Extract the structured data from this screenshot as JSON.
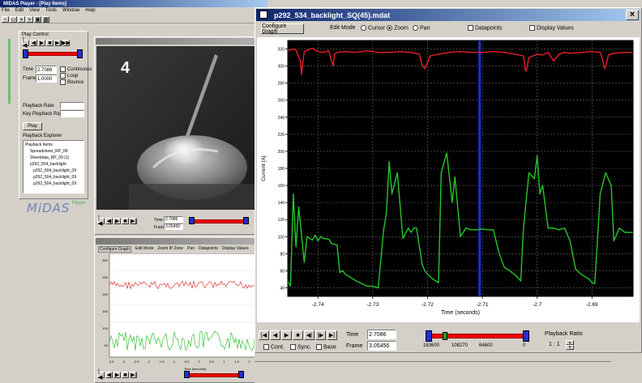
{
  "app": {
    "title": "MIDAS Player - [Play Items]",
    "menu": [
      "File",
      "Edit",
      "View",
      "Tools",
      "Window",
      "Help"
    ],
    "logo_text": "MiDAS",
    "logo_sub": "Player"
  },
  "play_control": {
    "title": "Play Control",
    "time_label": "Time",
    "time_value": "2.7086",
    "frame_label": "Frame",
    "frame_value": "1.0000",
    "cbx_continuous": "Continuous",
    "cbx_loop": "Loop",
    "cbx_bounce": "Bounce",
    "playback_rate_label": "Playback Rate",
    "key_frame_label": "Key Playback Rate",
    "play_button": "Play",
    "explorer_title": "Playback Explorer",
    "tree": [
      "Playback Items",
      "Spreadsheet_RP_09",
      "Sheetdata_RP_09 (1)",
      "p292_504_backlight",
      "p292_504_backlight_09",
      "p292_504_backlight_09",
      "p292_504_backlight_09"
    ]
  },
  "video": {
    "overlay_number": "4",
    "time_label": "Time",
    "time_value": "2.7086",
    "frame_label": "Frame",
    "frame_value": "3.05456"
  },
  "small_chart": {
    "tabs": [
      "Configure Graph",
      "Edit Mode",
      "Zoom IP Zone",
      "Pan",
      "Datapoints",
      "Display Values"
    ],
    "y_ticks": [
      "300",
      "250",
      "200",
      "150",
      "100",
      "50"
    ],
    "x_ticks": [
      "-3.5",
      "-3",
      "-2.5",
      "-2",
      "-1.5",
      "-1",
      "-0.5",
      "0",
      "0.5",
      "1",
      "1.5",
      "2",
      "2.5"
    ],
    "xlabel": "Time (seconds)",
    "colors": {
      "top": "#e01818",
      "bottom": "#18b818"
    }
  },
  "chart_window": {
    "title": "p292_534_backlight_SQ(45).mdat",
    "close_icon": "×",
    "configure_button": "Configure Graph",
    "edit_mode_label": "Edit Mode",
    "mode_cursor": "Cursor",
    "mode_zoom": "Zoom",
    "mode_pan": "Pan",
    "datapoints_label": "Datapoints",
    "display_values_label": "Display Values",
    "selected_mode": "Zoom"
  },
  "playback": {
    "time_label": "Time",
    "time_value": "2.7086",
    "frame_label": "Frame",
    "frame_value": "3.05456",
    "cbx_cont": "Cont.",
    "cbx_sync": "Sync.",
    "cbx_base": "Base",
    "scrub_labels": [
      "163600",
      "108270",
      "64600",
      "0"
    ],
    "position": 0.12,
    "ratio_label": "Playback Ratio",
    "ratio_value": "1 : 1"
  },
  "chart_data": {
    "type": "line",
    "ylabel": "Current [A]",
    "xlabel": "Time (seconds)",
    "xlim": [
      -2.7455,
      -2.6825
    ],
    "ylim": [
      30,
      330
    ],
    "x_ticks": [
      -2.74,
      -2.73,
      -2.72,
      -2.71,
      -2.7,
      -2.69
    ],
    "x_tick_labels": [
      "-2.74",
      "-2.73",
      "-2.72",
      "-2.71",
      "-2.7",
      "-2.69"
    ],
    "y_ticks": [
      40,
      60,
      80,
      100,
      120,
      140,
      160,
      180,
      200,
      220,
      240,
      260,
      280,
      300,
      320
    ],
    "cursor_x": -2.7105,
    "colors": {
      "background": "#000000",
      "grid": "#6a6a6a",
      "cursor": "#2030c8",
      "axes_bg": "#ffffff"
    },
    "series": [
      {
        "color": "#e81e2a",
        "x": [
          -2.7455,
          -2.7445,
          -2.744,
          -2.7432,
          -2.743,
          -2.7425,
          -2.741,
          -2.74,
          -2.739,
          -2.738,
          -2.7375,
          -2.7372,
          -2.737,
          -2.7365,
          -2.735,
          -2.733,
          -2.731,
          -2.729,
          -2.727,
          -2.725,
          -2.723,
          -2.7215,
          -2.721,
          -2.7205,
          -2.7195,
          -2.718,
          -2.716,
          -2.714,
          -2.712,
          -2.71,
          -2.708,
          -2.706,
          -2.704,
          -2.7025,
          -2.7022,
          -2.702,
          -2.7015,
          -2.7,
          -2.699,
          -2.698,
          -2.697,
          -2.696,
          -2.695,
          -2.694,
          -2.692,
          -2.69,
          -2.6885,
          -2.688,
          -2.6877,
          -2.6875,
          -2.687,
          -2.686,
          -2.684,
          -2.6825
        ],
        "y": [
          318,
          320,
          319,
          306,
          290,
          317,
          321,
          317,
          316,
          318,
          305,
          300,
          314,
          316,
          317,
          316,
          318,
          316,
          316,
          317,
          316,
          314,
          301,
          297,
          312,
          314,
          316,
          317,
          316,
          316,
          317,
          316,
          314,
          312,
          297,
          294,
          310,
          314,
          313,
          316,
          306,
          314,
          316,
          315,
          316,
          317,
          316,
          306,
          297,
          300,
          313,
          315,
          316,
          316
        ]
      },
      {
        "color": "#26c62a",
        "x": [
          -2.7455,
          -2.745,
          -2.7445,
          -2.744,
          -2.7435,
          -2.7425,
          -2.742,
          -2.741,
          -2.7405,
          -2.74,
          -2.7395,
          -2.739,
          -2.738,
          -2.7375,
          -2.7365,
          -2.736,
          -2.7355,
          -2.735,
          -2.734,
          -2.733,
          -2.732,
          -2.731,
          -2.73,
          -2.729,
          -2.728,
          -2.7275,
          -2.727,
          -2.7265,
          -2.7255,
          -2.7245,
          -2.7235,
          -2.723,
          -2.7225,
          -2.722,
          -2.721,
          -2.7205,
          -2.72,
          -2.719,
          -2.7185,
          -2.718,
          -2.7175,
          -2.7165,
          -2.7155,
          -2.715,
          -2.714,
          -2.713,
          -2.712,
          -2.711,
          -2.71,
          -2.709,
          -2.708,
          -2.707,
          -2.706,
          -2.705,
          -2.704,
          -2.7035,
          -2.703,
          -2.7025,
          -2.7015,
          -2.7005,
          -2.7,
          -2.6995,
          -2.699,
          -2.698,
          -2.697,
          -2.696,
          -2.695,
          -2.694,
          -2.693,
          -2.692,
          -2.691,
          -2.6905,
          -2.69,
          -2.6895,
          -2.689,
          -2.6885,
          -2.6875,
          -2.6865,
          -2.686,
          -2.685,
          -2.684,
          -2.6825
        ],
        "y": [
          48,
          42,
          150,
          88,
          135,
          70,
          100,
          96,
          102,
          95,
          100,
          98,
          97,
          92,
          90,
          58,
          60,
          56,
          52,
          48,
          45,
          42,
          42,
          40,
          108,
          128,
          188,
          150,
          175,
          98,
          110,
          105,
          110,
          110,
          68,
          60,
          56,
          50,
          48,
          46,
          175,
          198,
          140,
          170,
          100,
          110,
          108,
          108,
          109,
          108,
          108,
          82,
          64,
          60,
          55,
          52,
          48,
          110,
          175,
          168,
          195,
          150,
          160,
          110,
          110,
          108,
          110,
          95,
          62,
          56,
          52,
          50,
          46,
          45,
          95,
          150,
          175,
          160,
          95,
          110,
          105,
          105
        ]
      }
    ]
  }
}
